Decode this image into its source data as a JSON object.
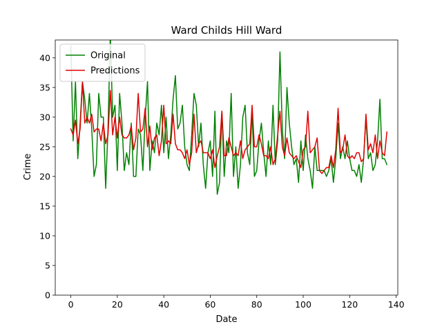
{
  "chart_data": {
    "type": "line",
    "title": "Ward Childs Hill Ward",
    "xlabel": "Date",
    "ylabel": "Crime",
    "xlim": [
      -6.7,
      140.7
    ],
    "ylim": [
      0,
      43
    ],
    "xticks": [
      0,
      20,
      40,
      60,
      80,
      100,
      120,
      140
    ],
    "yticks": [
      0,
      5,
      10,
      15,
      20,
      25,
      30,
      35,
      40
    ],
    "grid": false,
    "legend_position": "upper-left",
    "series": [
      {
        "name": "Original",
        "color": "#008000",
        "values": [
          42,
          26,
          36,
          23,
          29,
          36,
          33,
          29,
          34,
          28,
          20,
          22,
          34,
          30,
          30,
          18,
          28,
          44,
          30,
          32,
          21,
          34,
          29,
          21,
          24,
          22,
          29,
          20,
          20,
          28,
          27,
          21,
          30,
          36,
          21,
          26,
          24,
          29,
          27,
          32,
          24,
          30,
          23,
          27,
          33,
          37,
          28,
          29,
          32,
          25,
          22,
          21,
          27,
          34,
          32,
          25,
          29,
          22,
          18,
          24,
          26,
          20,
          31,
          17,
          19,
          31,
          20,
          26,
          24,
          34,
          20,
          25,
          18,
          22,
          30,
          32,
          24,
          22,
          31,
          20,
          21,
          26,
          29,
          24,
          20,
          26,
          22,
          32,
          22,
          26,
          41,
          28,
          23,
          35,
          29,
          25,
          22,
          23,
          19,
          26,
          21,
          27,
          23,
          21,
          18,
          25,
          21,
          21,
          21,
          21,
          20,
          21,
          23,
          19,
          23,
          29,
          23,
          25,
          23,
          26,
          23,
          21,
          21,
          20,
          22,
          19,
          23,
          30,
          23,
          24,
          21,
          22,
          26,
          33,
          23,
          23,
          22
        ]
      },
      {
        "name": "Predictions",
        "color": "#e00000",
        "values": [
          28,
          27,
          29.5,
          25.5,
          28,
          36,
          29,
          30,
          29,
          30.5,
          27.5,
          28,
          28,
          26,
          29,
          25.5,
          27,
          34.5,
          27,
          30,
          26.5,
          30,
          27,
          26.5,
          26.5,
          27,
          28.5,
          24.5,
          26.5,
          34,
          27.5,
          28,
          31.5,
          25,
          28.5,
          24.5,
          26.5,
          27,
          23.5,
          26,
          32,
          25.5,
          26,
          25.5,
          30.5,
          25.5,
          24.5,
          24.5,
          24,
          23,
          24.5,
          22,
          24,
          30.5,
          24,
          25.5,
          26,
          24,
          24,
          24,
          23,
          24.5,
          21.5,
          23.5,
          25,
          31,
          23.5,
          23.5,
          26.5,
          25,
          23.5,
          24,
          23.5,
          26,
          23,
          24.5,
          25,
          25.5,
          32,
          25,
          25,
          27,
          25.5,
          23.5,
          23.5,
          23,
          25,
          22,
          23,
          27,
          31,
          25,
          23.5,
          26.5,
          24,
          23.5,
          23,
          23.5,
          22.5,
          21.5,
          24.5,
          25,
          31,
          24,
          24.5,
          25,
          26.5,
          21,
          20.5,
          21,
          21.5,
          21.5,
          23.5,
          21.5,
          24.5,
          31.5,
          24,
          24.5,
          27,
          23.5,
          23,
          23.5,
          23,
          24,
          24,
          22.5,
          23,
          30.5,
          24.5,
          25.5,
          24,
          27,
          23,
          26,
          24,
          23.5,
          27.5
        ]
      }
    ]
  }
}
